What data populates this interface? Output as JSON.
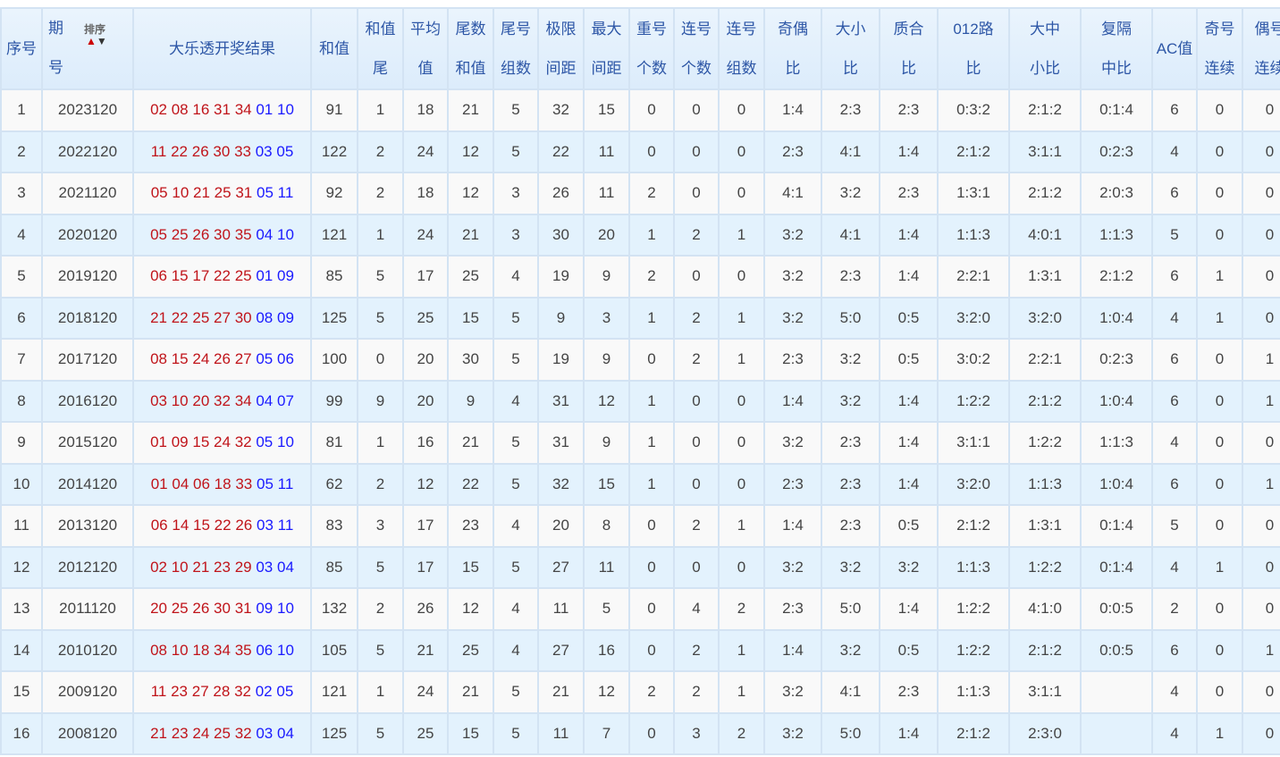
{
  "headers": {
    "seq": "序号",
    "issue_1": "期",
    "issue_2": "号",
    "sort_label": "排序",
    "result": "大乐透开奖结果",
    "sum": "和值",
    "sum_tail": [
      "和值",
      "尾"
    ],
    "avg": [
      "平均",
      "值"
    ],
    "tail_sum": [
      "尾数",
      "和值"
    ],
    "tail_groups": [
      "尾号",
      "组数"
    ],
    "limit_gap": [
      "极限",
      "间距"
    ],
    "max_gap": [
      "最大",
      "间距"
    ],
    "repeat": [
      "重号",
      "个数"
    ],
    "consec": [
      "连号",
      "个数"
    ],
    "consec_groups": [
      "连号",
      "组数"
    ],
    "odd_even": [
      "奇偶",
      "比"
    ],
    "big_small": [
      "大小",
      "比"
    ],
    "prime": [
      "质合",
      "比"
    ],
    "route012": [
      "012路",
      "比"
    ],
    "big_mid_small": [
      "大中",
      "小比"
    ],
    "repeat_gap_mid": [
      "复隔",
      "中比"
    ],
    "ac": "AC值",
    "odd_consec": [
      "奇号",
      "连续"
    ],
    "even_consec": [
      "偶号",
      "连续"
    ]
  },
  "colors": {
    "red_ball": "#c0141a",
    "blue_ball": "#1a1aff",
    "header_text": "#2d56a6",
    "row_alt": "#e3f2fd"
  },
  "rows": [
    {
      "seq": "1",
      "issue": "2023120",
      "red": [
        "02",
        "08",
        "16",
        "31",
        "34"
      ],
      "blue": [
        "01",
        "10"
      ],
      "v": [
        "91",
        "1",
        "18",
        "21",
        "5",
        "32",
        "15",
        "0",
        "0",
        "0",
        "1:4",
        "2:3",
        "2:3",
        "0:3:2",
        "2:1:2",
        "0:1:4",
        "6",
        "0",
        "0"
      ]
    },
    {
      "seq": "2",
      "issue": "2022120",
      "red": [
        "11",
        "22",
        "26",
        "30",
        "33"
      ],
      "blue": [
        "03",
        "05"
      ],
      "v": [
        "122",
        "2",
        "24",
        "12",
        "5",
        "22",
        "11",
        "0",
        "0",
        "0",
        "2:3",
        "4:1",
        "1:4",
        "2:1:2",
        "3:1:1",
        "0:2:3",
        "4",
        "0",
        "0"
      ]
    },
    {
      "seq": "3",
      "issue": "2021120",
      "red": [
        "05",
        "10",
        "21",
        "25",
        "31"
      ],
      "blue": [
        "05",
        "11"
      ],
      "v": [
        "92",
        "2",
        "18",
        "12",
        "3",
        "26",
        "11",
        "2",
        "0",
        "0",
        "4:1",
        "3:2",
        "2:3",
        "1:3:1",
        "2:1:2",
        "2:0:3",
        "6",
        "0",
        "0"
      ]
    },
    {
      "seq": "4",
      "issue": "2020120",
      "red": [
        "05",
        "25",
        "26",
        "30",
        "35"
      ],
      "blue": [
        "04",
        "10"
      ],
      "v": [
        "121",
        "1",
        "24",
        "21",
        "3",
        "30",
        "20",
        "1",
        "2",
        "1",
        "3:2",
        "4:1",
        "1:4",
        "1:1:3",
        "4:0:1",
        "1:1:3",
        "5",
        "0",
        "0"
      ]
    },
    {
      "seq": "5",
      "issue": "2019120",
      "red": [
        "06",
        "15",
        "17",
        "22",
        "25"
      ],
      "blue": [
        "01",
        "09"
      ],
      "v": [
        "85",
        "5",
        "17",
        "25",
        "4",
        "19",
        "9",
        "2",
        "0",
        "0",
        "3:2",
        "2:3",
        "1:4",
        "2:2:1",
        "1:3:1",
        "2:1:2",
        "6",
        "1",
        "0"
      ]
    },
    {
      "seq": "6",
      "issue": "2018120",
      "red": [
        "21",
        "22",
        "25",
        "27",
        "30"
      ],
      "blue": [
        "08",
        "09"
      ],
      "v": [
        "125",
        "5",
        "25",
        "15",
        "5",
        "9",
        "3",
        "1",
        "2",
        "1",
        "3:2",
        "5:0",
        "0:5",
        "3:2:0",
        "3:2:0",
        "1:0:4",
        "4",
        "1",
        "0"
      ]
    },
    {
      "seq": "7",
      "issue": "2017120",
      "red": [
        "08",
        "15",
        "24",
        "26",
        "27"
      ],
      "blue": [
        "05",
        "06"
      ],
      "v": [
        "100",
        "0",
        "20",
        "30",
        "5",
        "19",
        "9",
        "0",
        "2",
        "1",
        "2:3",
        "3:2",
        "0:5",
        "3:0:2",
        "2:2:1",
        "0:2:3",
        "6",
        "0",
        "1"
      ]
    },
    {
      "seq": "8",
      "issue": "2016120",
      "red": [
        "03",
        "10",
        "20",
        "32",
        "34"
      ],
      "blue": [
        "04",
        "07"
      ],
      "v": [
        "99",
        "9",
        "20",
        "9",
        "4",
        "31",
        "12",
        "1",
        "0",
        "0",
        "1:4",
        "3:2",
        "1:4",
        "1:2:2",
        "2:1:2",
        "1:0:4",
        "6",
        "0",
        "1"
      ]
    },
    {
      "seq": "9",
      "issue": "2015120",
      "red": [
        "01",
        "09",
        "15",
        "24",
        "32"
      ],
      "blue": [
        "05",
        "10"
      ],
      "v": [
        "81",
        "1",
        "16",
        "21",
        "5",
        "31",
        "9",
        "1",
        "0",
        "0",
        "3:2",
        "2:3",
        "1:4",
        "3:1:1",
        "1:2:2",
        "1:1:3",
        "4",
        "0",
        "0"
      ]
    },
    {
      "seq": "10",
      "issue": "2014120",
      "red": [
        "01",
        "04",
        "06",
        "18",
        "33"
      ],
      "blue": [
        "05",
        "11"
      ],
      "v": [
        "62",
        "2",
        "12",
        "22",
        "5",
        "32",
        "15",
        "1",
        "0",
        "0",
        "2:3",
        "2:3",
        "1:4",
        "3:2:0",
        "1:1:3",
        "1:0:4",
        "6",
        "0",
        "1"
      ]
    },
    {
      "seq": "11",
      "issue": "2013120",
      "red": [
        "06",
        "14",
        "15",
        "22",
        "26"
      ],
      "blue": [
        "03",
        "11"
      ],
      "v": [
        "83",
        "3",
        "17",
        "23",
        "4",
        "20",
        "8",
        "0",
        "2",
        "1",
        "1:4",
        "2:3",
        "0:5",
        "2:1:2",
        "1:3:1",
        "0:1:4",
        "5",
        "0",
        "0"
      ]
    },
    {
      "seq": "12",
      "issue": "2012120",
      "red": [
        "02",
        "10",
        "21",
        "23",
        "29"
      ],
      "blue": [
        "03",
        "04"
      ],
      "v": [
        "85",
        "5",
        "17",
        "15",
        "5",
        "27",
        "11",
        "0",
        "0",
        "0",
        "3:2",
        "3:2",
        "3:2",
        "1:1:3",
        "1:2:2",
        "0:1:4",
        "4",
        "1",
        "0"
      ]
    },
    {
      "seq": "13",
      "issue": "2011120",
      "red": [
        "20",
        "25",
        "26",
        "30",
        "31"
      ],
      "blue": [
        "09",
        "10"
      ],
      "v": [
        "132",
        "2",
        "26",
        "12",
        "4",
        "11",
        "5",
        "0",
        "4",
        "2",
        "2:3",
        "5:0",
        "1:4",
        "1:2:2",
        "4:1:0",
        "0:0:5",
        "2",
        "0",
        "0"
      ]
    },
    {
      "seq": "14",
      "issue": "2010120",
      "red": [
        "08",
        "10",
        "18",
        "34",
        "35"
      ],
      "blue": [
        "06",
        "10"
      ],
      "v": [
        "105",
        "5",
        "21",
        "25",
        "4",
        "27",
        "16",
        "0",
        "2",
        "1",
        "1:4",
        "3:2",
        "0:5",
        "1:2:2",
        "2:1:2",
        "0:0:5",
        "6",
        "0",
        "1"
      ]
    },
    {
      "seq": "15",
      "issue": "2009120",
      "red": [
        "11",
        "23",
        "27",
        "28",
        "32"
      ],
      "blue": [
        "02",
        "05"
      ],
      "v": [
        "121",
        "1",
        "24",
        "21",
        "5",
        "21",
        "12",
        "2",
        "2",
        "1",
        "3:2",
        "4:1",
        "2:3",
        "1:1:3",
        "3:1:1",
        "",
        "4",
        "0",
        "0"
      ]
    },
    {
      "seq": "16",
      "issue": "2008120",
      "red": [
        "21",
        "23",
        "24",
        "25",
        "32"
      ],
      "blue": [
        "03",
        "04"
      ],
      "v": [
        "125",
        "5",
        "25",
        "15",
        "5",
        "11",
        "7",
        "0",
        "3",
        "2",
        "3:2",
        "5:0",
        "1:4",
        "2:1:2",
        "2:3:0",
        "",
        "4",
        "1",
        "0"
      ]
    }
  ]
}
